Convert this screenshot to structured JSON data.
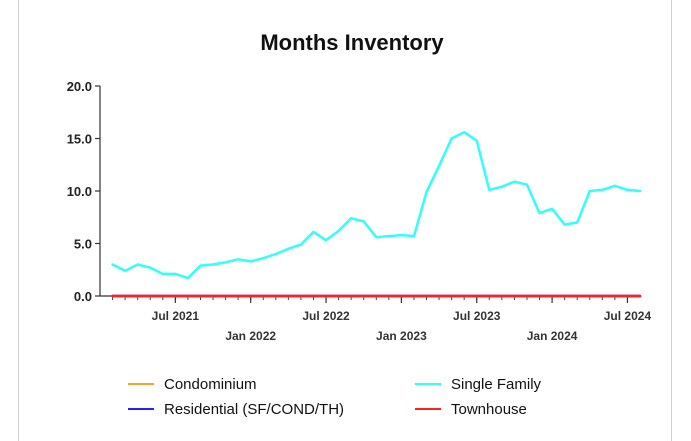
{
  "chart_data": {
    "type": "line",
    "title": "Months Inventory",
    "xlabel": "",
    "ylabel": "",
    "ylim": [
      0,
      20
    ],
    "yticks": [
      "0.0",
      "5.0",
      "10.0",
      "15.0",
      "20.0"
    ],
    "xlim": [
      "2021-01",
      "2024-08"
    ],
    "xticks": [
      {
        "label": "Jul 2021",
        "x": "2021-07"
      },
      {
        "label": "Jan 2022",
        "x": "2022-01"
      },
      {
        "label": "Jul 2022",
        "x": "2022-07"
      },
      {
        "label": "Jan 2023",
        "x": "2023-01"
      },
      {
        "label": "Jul 2023",
        "x": "2023-07"
      },
      {
        "label": "Jan 2024",
        "x": "2024-01"
      },
      {
        "label": "Jul 2024",
        "x": "2024-07"
      }
    ],
    "grid": false,
    "legend_position": "bottom",
    "x": [
      "2021-02",
      "2021-03",
      "2021-04",
      "2021-05",
      "2021-06",
      "2021-07",
      "2021-08",
      "2021-09",
      "2021-10",
      "2021-11",
      "2021-12",
      "2022-01",
      "2022-02",
      "2022-03",
      "2022-04",
      "2022-05",
      "2022-06",
      "2022-07",
      "2022-08",
      "2022-09",
      "2022-10",
      "2022-11",
      "2022-12",
      "2023-01",
      "2023-02",
      "2023-03",
      "2023-04",
      "2023-05",
      "2023-06",
      "2023-07",
      "2023-08",
      "2023-09",
      "2023-10",
      "2023-11",
      "2023-12",
      "2024-01",
      "2024-02",
      "2024-03",
      "2024-04",
      "2024-05",
      "2024-06",
      "2024-07",
      "2024-08"
    ],
    "series": [
      {
        "name": "Condominium",
        "color": "#f5a623",
        "values": [
          0,
          0,
          0,
          0,
          0,
          0,
          0,
          0,
          0,
          0,
          0,
          0,
          0,
          0,
          0,
          0,
          0,
          0,
          0,
          0,
          0,
          0,
          0,
          0,
          0,
          0,
          0,
          0,
          0,
          0,
          0,
          0,
          0,
          0,
          0,
          0,
          0,
          0,
          0,
          0,
          0,
          0,
          0
        ]
      },
      {
        "name": "Single Family",
        "color": "#33ffff",
        "values": [
          3.0,
          2.4,
          3.0,
          2.7,
          2.1,
          2.1,
          1.7,
          2.9,
          3.0,
          3.2,
          3.5,
          3.3,
          3.6,
          4.0,
          4.5,
          4.9,
          6.1,
          5.3,
          6.2,
          7.4,
          7.1,
          5.6,
          5.7,
          5.8,
          5.7,
          9.9,
          12.4,
          15.0,
          15.6,
          14.8,
          10.1,
          10.4,
          10.9,
          10.6,
          7.9,
          8.3,
          6.8,
          7.0,
          10.0,
          10.1,
          10.5,
          10.1,
          10.0
        ]
      },
      {
        "name": "Residential (SF/COND/TH)",
        "color": "#2222ff",
        "values": [
          0,
          0,
          0,
          0,
          0,
          0,
          0,
          0,
          0,
          0,
          0,
          0,
          0,
          0,
          0,
          0,
          0,
          0,
          0,
          0,
          0,
          0,
          0,
          0,
          0,
          0,
          0,
          0,
          0,
          0,
          0,
          0,
          0,
          0,
          0,
          0,
          0,
          0,
          0,
          0,
          0,
          0,
          0
        ]
      },
      {
        "name": "Townhouse",
        "color": "#ff2222",
        "values": [
          0,
          0,
          0,
          0,
          0,
          0,
          0,
          0,
          0,
          0,
          0,
          0,
          0,
          0,
          0,
          0,
          0,
          0,
          0,
          0,
          0,
          0,
          0,
          0,
          0,
          0,
          0,
          0,
          0,
          0,
          0,
          0,
          0,
          0,
          0,
          0,
          0,
          0,
          0,
          0,
          0,
          0,
          0
        ]
      }
    ],
    "legend": [
      {
        "label": "Condominium",
        "color": "#f5a623"
      },
      {
        "label": "Single Family",
        "color": "#33ffff"
      },
      {
        "label": "Residential (SF/COND/TH)",
        "color": "#2222ff"
      },
      {
        "label": "Townhouse",
        "color": "#ff2222"
      }
    ]
  }
}
